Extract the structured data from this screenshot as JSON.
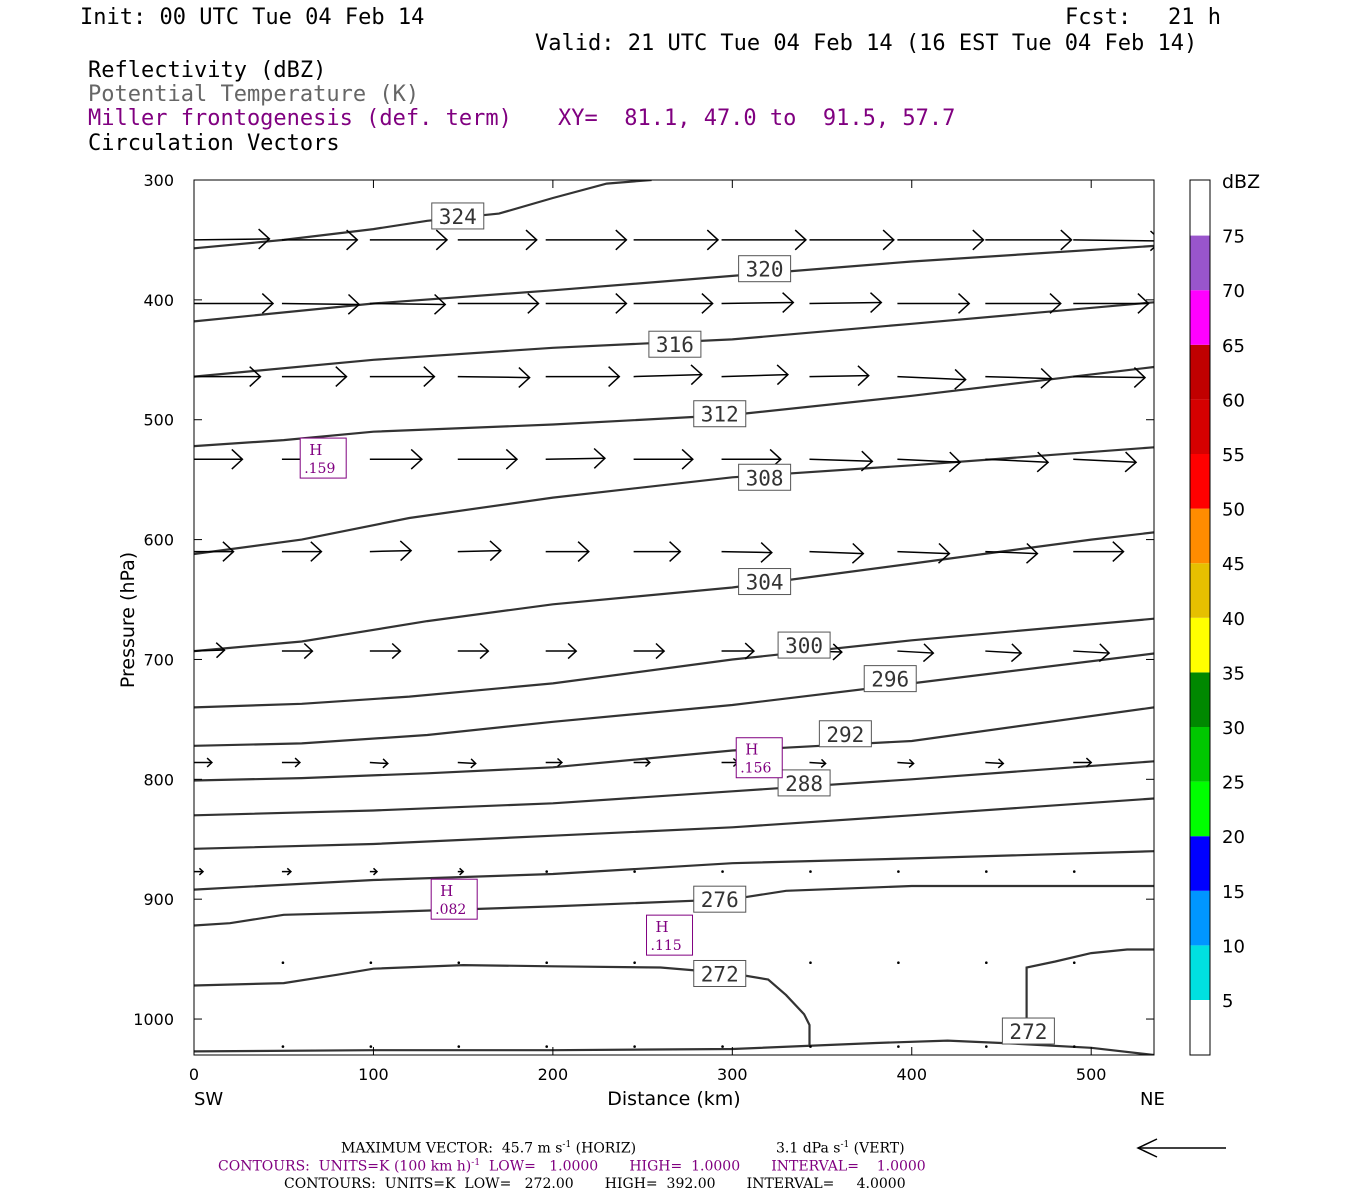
{
  "header": {
    "init": "Init: 00 UTC Tue 04 Feb 14",
    "fcst_label": "Fcst:",
    "fcst_value": "21 h",
    "valid": "Valid: 21 UTC Tue 04 Feb 14 (16 EST Tue 04 Feb 14)"
  },
  "legend": {
    "line1": "Reflectivity (dBZ)",
    "line2": "Potential Temperature (K)",
    "line3": "Miller frontogenesis (def. term)",
    "xy": "XY=  81.1, 47.0 to  91.5, 57.7",
    "line4": "Circulation Vectors"
  },
  "footer": {
    "max_vector": "MAXIMUM VECTOR:  45.7 m s",
    "max_vector_exp": "-1",
    "horiz": " (HORIZ)",
    "vert_val": "3.1 dPa s",
    "vert_exp": "-1",
    "vert": " (VERT)",
    "contours1_a": "CONTOURS:  UNITS=K (100 km h)",
    "contours1_exp": "-1",
    "contours1_b": "  LOW=   1.0000       HIGH=  1.0000       INTERVAL=    1.0000",
    "contours2": "CONTOURS:  UNITS=K  LOW=   272.00       HIGH=  392.00       INTERVAL=     4.0000"
  },
  "chart_data": {
    "type": "cross-section",
    "xlabel": "Distance (km)",
    "ylabel": "Pressure (hPa)",
    "xlim": [
      0,
      535
    ],
    "ylim": [
      1030,
      300
    ],
    "x_ticks": [
      0,
      100,
      200,
      300,
      400,
      500
    ],
    "y_ticks": [
      300,
      400,
      500,
      600,
      700,
      800,
      900,
      1000
    ],
    "x_end_labels": {
      "left": "SW",
      "right": "NE"
    },
    "colorbar": {
      "label": "dBZ",
      "ticks": [
        5,
        10,
        15,
        20,
        25,
        30,
        35,
        40,
        45,
        50,
        55,
        60,
        65,
        70,
        75
      ],
      "colors": [
        "#00e0e0",
        "#0096ff",
        "#0000ff",
        "#00ff00",
        "#00c800",
        "#008800",
        "#ffff00",
        "#e6c000",
        "#ff8c00",
        "#ff0000",
        "#d60000",
        "#c00000",
        "#ff00ff",
        "#9955cc"
      ]
    },
    "isentropes": [
      {
        "label": "324",
        "label_at": [
          147,
          330
        ],
        "points": [
          [
            0,
            357
          ],
          [
            50,
            350
          ],
          [
            100,
            341
          ],
          [
            130,
            334
          ],
          [
            170,
            328
          ],
          [
            200,
            315
          ],
          [
            230,
            303
          ],
          [
            255,
            300
          ]
        ]
      },
      {
        "label": "320",
        "label_at": [
          318,
          374
        ],
        "points": [
          [
            0,
            418
          ],
          [
            100,
            403
          ],
          [
            200,
            392
          ],
          [
            300,
            380
          ],
          [
            400,
            368
          ],
          [
            535,
            355
          ]
        ]
      },
      {
        "label": "316",
        "label_at": [
          268,
          437
        ],
        "points": [
          [
            0,
            464
          ],
          [
            100,
            450
          ],
          [
            200,
            440
          ],
          [
            300,
            433
          ],
          [
            400,
            420
          ],
          [
            535,
            402
          ]
        ]
      },
      {
        "label": "312",
        "label_at": [
          293,
          495
        ],
        "points": [
          [
            0,
            522
          ],
          [
            50,
            517
          ],
          [
            100,
            510
          ],
          [
            200,
            504
          ],
          [
            300,
            496
          ],
          [
            400,
            480
          ],
          [
            535,
            456
          ]
        ]
      },
      {
        "label": "308",
        "label_at": [
          318,
          548
        ],
        "points": [
          [
            0,
            612
          ],
          [
            60,
            600
          ],
          [
            120,
            582
          ],
          [
            200,
            565
          ],
          [
            300,
            548
          ],
          [
            400,
            538
          ],
          [
            535,
            523
          ]
        ]
      },
      {
        "label": "304",
        "label_at": [
          318,
          635
        ],
        "points": [
          [
            0,
            693
          ],
          [
            60,
            685
          ],
          [
            130,
            668
          ],
          [
            200,
            654
          ],
          [
            300,
            640
          ],
          [
            350,
            630
          ],
          [
            400,
            620
          ],
          [
            500,
            600
          ],
          [
            535,
            594
          ]
        ]
      },
      {
        "label": "300",
        "label_at": [
          340,
          688
        ],
        "points": [
          [
            0,
            740
          ],
          [
            60,
            737
          ],
          [
            120,
            731
          ],
          [
            200,
            720
          ],
          [
            300,
            700
          ],
          [
            400,
            684
          ],
          [
            535,
            666
          ]
        ]
      },
      {
        "label": "296",
        "label_at": [
          388,
          716
        ],
        "points": [
          [
            0,
            772
          ],
          [
            60,
            770
          ],
          [
            130,
            763
          ],
          [
            200,
            752
          ],
          [
            300,
            738
          ],
          [
            400,
            720
          ],
          [
            535,
            695
          ]
        ]
      },
      {
        "label": "292",
        "label_at": [
          363,
          762
        ],
        "points": [
          [
            0,
            801
          ],
          [
            60,
            799
          ],
          [
            130,
            795
          ],
          [
            200,
            790
          ],
          [
            300,
            776
          ],
          [
            400,
            768
          ],
          [
            535,
            740
          ]
        ]
      },
      {
        "label": "288",
        "label_at": [
          340,
          803
        ],
        "points": [
          [
            0,
            830
          ],
          [
            100,
            826
          ],
          [
            200,
            820
          ],
          [
            300,
            810
          ],
          [
            400,
            800
          ],
          [
            535,
            785
          ]
        ]
      },
      {
        "label": "",
        "label_at": null,
        "points": [
          [
            0,
            858
          ],
          [
            100,
            854
          ],
          [
            200,
            847
          ],
          [
            300,
            840
          ],
          [
            400,
            830
          ],
          [
            535,
            816
          ]
        ]
      },
      {
        "label": "",
        "label_at": null,
        "points": [
          [
            0,
            892
          ],
          [
            100,
            884
          ],
          [
            200,
            879
          ],
          [
            300,
            870
          ],
          [
            400,
            866
          ],
          [
            535,
            860
          ]
        ]
      },
      {
        "label": "276",
        "label_at": [
          293,
          900
        ],
        "points": [
          [
            0,
            922
          ],
          [
            20,
            920
          ],
          [
            50,
            913
          ],
          [
            100,
            911
          ],
          [
            200,
            906
          ],
          [
            300,
            900
          ],
          [
            330,
            893
          ],
          [
            400,
            889
          ],
          [
            535,
            889
          ]
        ]
      },
      {
        "label": "272",
        "label_at": [
          293,
          962
        ],
        "points": [
          [
            0,
            972
          ],
          [
            50,
            970
          ],
          [
            80,
            963
          ],
          [
            100,
            958
          ],
          [
            150,
            955
          ],
          [
            200,
            956
          ],
          [
            260,
            957
          ],
          [
            300,
            962
          ],
          [
            320,
            967
          ],
          [
            330,
            980
          ],
          [
            340,
            996
          ],
          [
            343,
            1005
          ],
          [
            343,
            1023
          ]
        ]
      },
      {
        "label": "272",
        "label_at": [
          465,
          1010
        ],
        "points": [
          [
            464,
            1008
          ],
          [
            464,
            957
          ],
          [
            480,
            952
          ],
          [
            500,
            945
          ],
          [
            520,
            942
          ],
          [
            535,
            942
          ]
        ]
      },
      {
        "label": "",
        "label_at": null,
        "points": [
          [
            0,
            1027
          ],
          [
            100,
            1026
          ],
          [
            200,
            1026
          ],
          [
            300,
            1025
          ],
          [
            380,
            1020
          ],
          [
            420,
            1018
          ],
          [
            450,
            1020
          ],
          [
            500,
            1024
          ],
          [
            535,
            1030
          ]
        ]
      }
    ],
    "frontogenesis_maxima": [
      {
        "label": "H",
        "value": ".159",
        "x": 72,
        "p": 532
      },
      {
        "label": "H",
        "value": ".156",
        "x": 315,
        "p": 782
      },
      {
        "label": "H",
        "value": ".082",
        "x": 145,
        "p": 900
      },
      {
        "label": "H",
        "value": ".115",
        "x": 265,
        "p": 930
      }
    ],
    "vector_rows": [
      {
        "p": 350,
        "x": [
          0,
          49,
          98,
          147,
          196,
          245,
          294,
          343,
          392,
          441,
          490
        ],
        "len": [
          42,
          42,
          43,
          44,
          45,
          47,
          47,
          47,
          48,
          48,
          49
        ],
        "dp": [
          1,
          0,
          0,
          0,
          0,
          0,
          0,
          0,
          0,
          0,
          -1
        ]
      },
      {
        "p": 403,
        "x": [
          0,
          49,
          98,
          147,
          196,
          245,
          294,
          343,
          392,
          441,
          490
        ],
        "len": [
          44,
          43,
          42,
          45,
          45,
          44,
          40,
          40,
          40,
          42,
          42
        ],
        "dp": [
          0,
          -1,
          -1,
          0,
          0,
          0,
          1,
          1,
          0,
          0,
          0
        ]
      },
      {
        "p": 464,
        "x": [
          0,
          49,
          98,
          147,
          196,
          245,
          294,
          343,
          392,
          441,
          490
        ],
        "len": [
          37,
          36,
          36,
          40,
          41,
          38,
          37,
          33,
          38,
          37,
          40
        ],
        "dp": [
          0,
          0,
          0,
          -1,
          0,
          2,
          2,
          1,
          -3,
          -2,
          -1
        ]
      },
      {
        "p": 533,
        "x": [
          0,
          49,
          98,
          147,
          196,
          245,
          294,
          343,
          392,
          441,
          490
        ],
        "len": [
          27,
          33,
          29,
          33,
          33,
          33,
          33,
          35,
          35,
          35,
          35
        ],
        "dp": [
          0,
          0,
          0,
          0,
          1,
          0,
          0,
          -2,
          -3,
          -3,
          -3
        ]
      },
      {
        "p": 610,
        "x": [
          0,
          49,
          98,
          147,
          196,
          245,
          294,
          343,
          392,
          441,
          490
        ],
        "len": [
          22,
          22,
          23,
          24,
          24,
          26,
          28,
          30,
          29,
          29,
          28
        ],
        "dp": [
          0,
          0,
          1,
          1,
          0,
          0,
          -1,
          -2,
          -2,
          -2,
          0
        ]
      },
      {
        "p": 693,
        "x": [
          0,
          49,
          98,
          147,
          196,
          245,
          294,
          343,
          392,
          441,
          490
        ],
        "len": [
          17,
          17,
          17,
          17,
          17,
          17,
          18,
          18,
          20,
          20,
          20
        ],
        "dp": [
          1,
          0,
          0,
          0,
          0,
          0,
          0,
          -1,
          -2,
          -2,
          -2
        ]
      },
      {
        "p": 786,
        "x": [
          0,
          49,
          98,
          147,
          196,
          245,
          294,
          343,
          392,
          441,
          490
        ],
        "len": [
          10,
          10,
          10,
          10,
          9,
          9,
          9,
          9,
          9,
          10,
          10
        ],
        "dp": [
          0,
          0,
          -1,
          -1,
          0,
          0,
          0,
          -1,
          -1,
          -1,
          0
        ]
      },
      {
        "p": 877,
        "x": [
          0,
          49,
          98,
          147,
          196,
          245,
          294,
          343,
          392,
          441,
          490
        ],
        "len": [
          5,
          5,
          4,
          3,
          2,
          1,
          1,
          1,
          1,
          1,
          1
        ],
        "dp": [
          0,
          0,
          0,
          0,
          0,
          0,
          0,
          0,
          0,
          0,
          0
        ]
      },
      {
        "p": 953,
        "x": [
          49,
          98,
          147,
          196,
          245,
          294,
          343,
          392,
          441,
          490
        ],
        "len": [
          1,
          1,
          1,
          1,
          1,
          1,
          1,
          1,
          1,
          1
        ],
        "dp": [
          0,
          0,
          0,
          0,
          0,
          0,
          0,
          0,
          0,
          0
        ]
      },
      {
        "p": 1023,
        "x": [
          49,
          98,
          147,
          196,
          245,
          294,
          343,
          392,
          441,
          490
        ],
        "len": [
          1,
          1,
          1,
          1,
          1,
          1,
          1,
          1,
          1,
          1
        ],
        "dp": [
          0,
          0,
          0,
          0,
          0,
          0,
          0,
          0,
          0,
          0
        ]
      }
    ]
  }
}
